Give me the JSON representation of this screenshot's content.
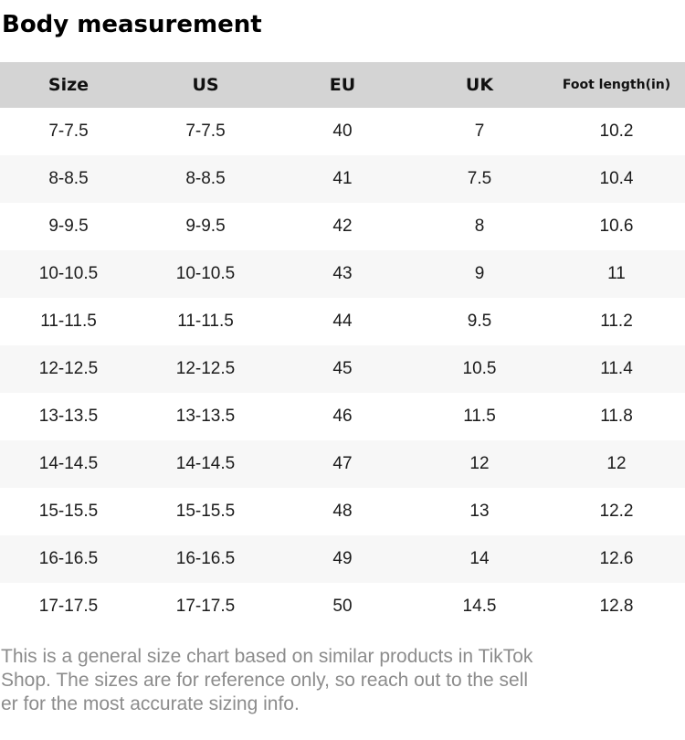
{
  "page": {
    "title": "Body measurement"
  },
  "colors": {
    "header_bg": "#d4d4d4",
    "row_alt_bg": "#f7f7f7",
    "cell_text": "#1b1b1b",
    "muted_text": "#8c8c8c"
  },
  "table": {
    "columns": [
      "Size",
      "US",
      "EU",
      "UK",
      "Foot length(in)"
    ],
    "rows": [
      {
        "size": "7-7.5",
        "us": "7-7.5",
        "eu": "40",
        "uk": "7",
        "foot_length_in": "10.2"
      },
      {
        "size": "8-8.5",
        "us": "8-8.5",
        "eu": "41",
        "uk": "7.5",
        "foot_length_in": "10.4"
      },
      {
        "size": "9-9.5",
        "us": "9-9.5",
        "eu": "42",
        "uk": "8",
        "foot_length_in": "10.6"
      },
      {
        "size": "10-10.5",
        "us": "10-10.5",
        "eu": "43",
        "uk": "9",
        "foot_length_in": "11"
      },
      {
        "size": "11-11.5",
        "us": "11-11.5",
        "eu": "44",
        "uk": "9.5",
        "foot_length_in": "11.2"
      },
      {
        "size": "12-12.5",
        "us": "12-12.5",
        "eu": "45",
        "uk": "10.5",
        "foot_length_in": "11.4"
      },
      {
        "size": "13-13.5",
        "us": "13-13.5",
        "eu": "46",
        "uk": "11.5",
        "foot_length_in": "11.8"
      },
      {
        "size": "14-14.5",
        "us": "14-14.5",
        "eu": "47",
        "uk": "12",
        "foot_length_in": "12"
      },
      {
        "size": "15-15.5",
        "us": "15-15.5",
        "eu": "48",
        "uk": "13",
        "foot_length_in": "12.2"
      },
      {
        "size": "16-16.5",
        "us": "16-16.5",
        "eu": "49",
        "uk": "14",
        "foot_length_in": "12.6"
      },
      {
        "size": "17-17.5",
        "us": "17-17.5",
        "eu": "50",
        "uk": "14.5",
        "foot_length_in": "12.8"
      }
    ]
  },
  "disclaimer": {
    "note": "This is a general size chart based on similar products in TikTok Shop. The sizes are for reference only, so reach out to the seller for the most accurate sizing info.",
    "lines": [
      "This is a general size chart based on similar products in TikTok",
      "Shop. The sizes are for reference only, so reach out to the sell",
      "er for the most accurate sizing info."
    ]
  }
}
